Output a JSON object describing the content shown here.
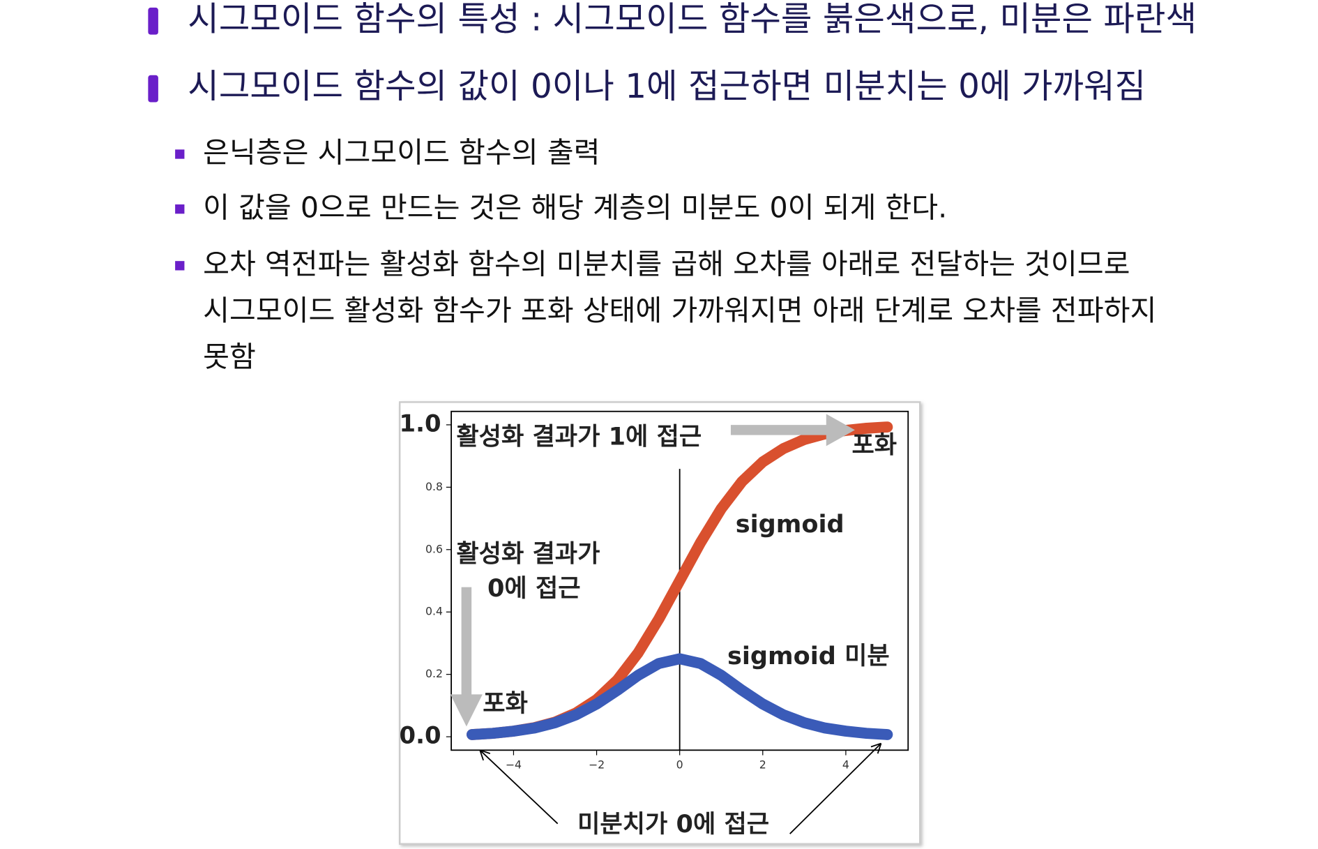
{
  "bullets": [
    {
      "text": "시그모이드 함수의 특성 : 시그모이드 함수를 붉은색으로, 미분은 파란색"
    },
    {
      "text": "시그모이드 함수의 값이 0이나 1에 접근하면 미분치는 0에 가까워짐"
    }
  ],
  "sub_bullets": [
    {
      "lines": [
        "은닉층은 시그모이드 함수의 출력"
      ]
    },
    {
      "lines": [
        "이 값을 0으로 만드는 것은 해당 계층의 미분도 0이 되게 한다."
      ]
    },
    {
      "lines": [
        "오차 역전파는 활성화 함수의 미분치를 곱해 오차를 아래로 전달하는 것이므로",
        "시그모이드 활성화 함수가 포화 상태에 가까워지면 아래 단계로 오차를 전파하지",
        "못함"
      ]
    }
  ],
  "chart_data": {
    "type": "line",
    "x": [
      -5,
      -4.5,
      -4,
      -3.5,
      -3,
      -2.5,
      -2,
      -1.5,
      -1,
      -0.5,
      0,
      0.5,
      1,
      1.5,
      2,
      2.5,
      3,
      3.5,
      4,
      4.5,
      5
    ],
    "series": [
      {
        "name": "sigmoid",
        "color": "#d9502e",
        "values": [
          0.007,
          0.011,
          0.018,
          0.029,
          0.047,
          0.076,
          0.119,
          0.182,
          0.269,
          0.378,
          0.5,
          0.622,
          0.731,
          0.818,
          0.881,
          0.924,
          0.953,
          0.971,
          0.982,
          0.989,
          0.993
        ]
      },
      {
        "name": "sigmoid 미분",
        "color": "#3a5bb8",
        "values": [
          0.007,
          0.011,
          0.018,
          0.028,
          0.045,
          0.07,
          0.105,
          0.149,
          0.197,
          0.235,
          0.25,
          0.235,
          0.197,
          0.149,
          0.105,
          0.07,
          0.045,
          0.028,
          0.018,
          0.011,
          0.007
        ]
      }
    ],
    "xlim": [
      -5.5,
      5.5
    ],
    "ylim": [
      -0.043,
      1.043
    ],
    "xticks": [
      {
        "value": -4,
        "label": "−4"
      },
      {
        "value": -2,
        "label": "−2"
      },
      0,
      2,
      4
    ],
    "yticks": [
      {
        "value": 0,
        "label": "0.0"
      },
      0.2,
      0.4,
      0.6,
      0.8,
      {
        "value": 1,
        "label": "1.0"
      }
    ],
    "annotations": [
      "활성화 결과가 1에 접근",
      "포화",
      "활성화 결과가",
      "0에 접근",
      "포화",
      "미분치가 0에 접근"
    ]
  }
}
